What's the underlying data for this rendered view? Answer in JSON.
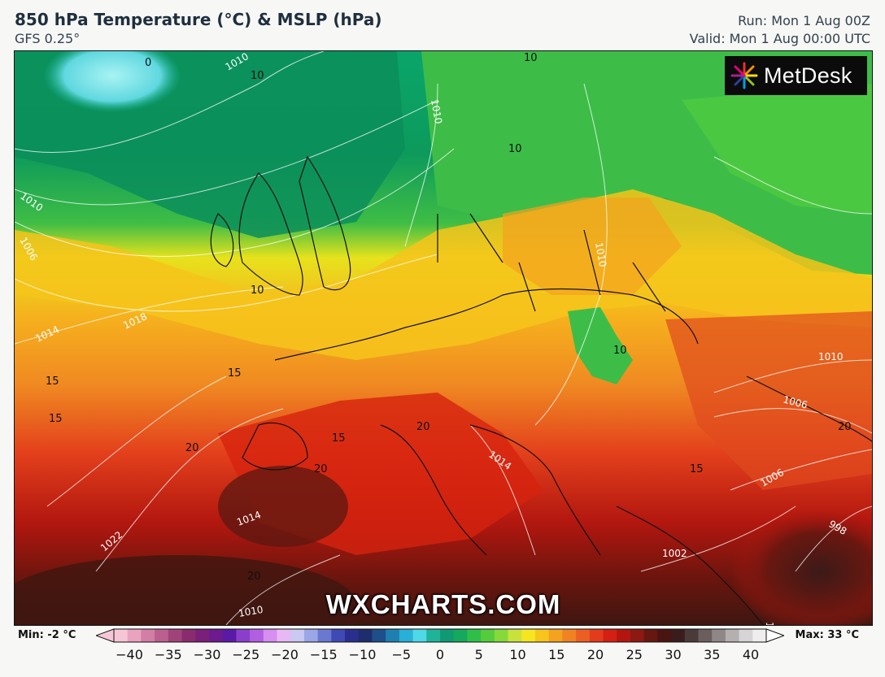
{
  "header": {
    "title": "850 hPa Temperature (°C) & MSLP (hPa)",
    "model": "GFS 0.25°",
    "run": "Run: Mon 1 Aug 00Z",
    "valid": "Valid: Mon 1 Aug 00:00 UTC"
  },
  "logo": {
    "text": "MetDesk"
  },
  "watermark": "WXCHARTS.COM",
  "isobar_labels": [
    "1010",
    "1010",
    "1010",
    "1006",
    "1018",
    "1014",
    "1022",
    "1014",
    "1010",
    "1014",
    "1010",
    "1006",
    "1006",
    "1002",
    "1010",
    "998",
    "1010"
  ],
  "temp_labels": [
    "0",
    "10",
    "10",
    "10",
    "10",
    "15",
    "15",
    "15",
    "20",
    "20",
    "15",
    "20",
    "15",
    "10",
    "20",
    "20"
  ],
  "colorbar": {
    "min_label": "Min: -2 °C",
    "max_label": "Max: 33 °C",
    "ticks": [
      "−40",
      "−35",
      "−30",
      "−25",
      "−20",
      "−15",
      "−10",
      "−5",
      "0",
      "5",
      "10",
      "15",
      "20",
      "25",
      "30",
      "35",
      "40"
    ],
    "colors": [
      "#f7c6d6",
      "#e9a3bf",
      "#d27ea5",
      "#bb5f8f",
      "#a2427b",
      "#8a2b6d",
      "#7a1f7a",
      "#6d1a8f",
      "#5a1aa6",
      "#8a3ec9",
      "#b25ee0",
      "#d68ef0",
      "#e8b8f4",
      "#c9c9f2",
      "#9aa6e6",
      "#6b78cf",
      "#3f4ab5",
      "#2a2f8f",
      "#1e2d6e",
      "#1d4f8a",
      "#1f7fb0",
      "#28b0d6",
      "#4fd8e6",
      "#1fb39a",
      "#0f9a73",
      "#14a95c",
      "#2fbf49",
      "#55cc3c",
      "#86d93a",
      "#c9e23b",
      "#f5e61f",
      "#f7c51b",
      "#f5a21e",
      "#f18222",
      "#ec5f22",
      "#e43b1c",
      "#d32012",
      "#b4160f",
      "#8c1a12",
      "#66170f",
      "#4a1410",
      "#3a1c1c",
      "#4a3a3a",
      "#6a5e5e",
      "#8f8787",
      "#b4b0b0",
      "#d6d4d4",
      "#eeeeee"
    ]
  }
}
